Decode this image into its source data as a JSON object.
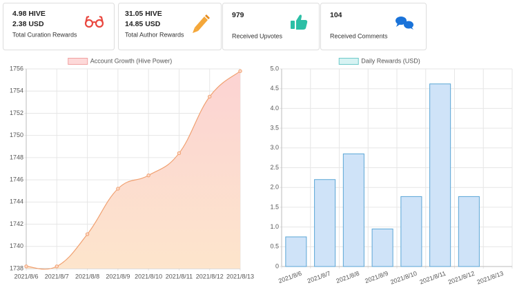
{
  "cards": [
    {
      "lines": [
        "4.98 HIVE",
        "2.38 USD"
      ],
      "label": "Total Curation Rewards"
    },
    {
      "lines": [
        "31.05 HIVE",
        "14.85 USD"
      ],
      "label": "Total Author Rewards"
    },
    {
      "lines": [
        "979"
      ],
      "label": "Received Upvotes"
    },
    {
      "lines": [
        "104"
      ],
      "label": "Received Comments"
    }
  ],
  "chart_data": [
    {
      "type": "line",
      "categories": [
        "2021/8/6",
        "2021/8/7",
        "2021/8/8",
        "2021/8/9",
        "2021/8/10",
        "2021/8/11",
        "2021/8/12",
        "2021/8/13"
      ],
      "series": [
        {
          "name": "Account Growth (Hive Power)",
          "color": "#f0a070",
          "values": [
            1738.2,
            1738.2,
            1741.1,
            1745.2,
            1746.4,
            1748.4,
            1753.5,
            1755.8
          ]
        }
      ],
      "ylim": [
        1738,
        1756
      ],
      "yticks": [
        1738,
        1740,
        1742,
        1744,
        1746,
        1748,
        1750,
        1752,
        1754,
        1756
      ],
      "grid": true
    },
    {
      "type": "bar",
      "categories": [
        "2021/8/6",
        "2021/8/7",
        "2021/8/8",
        "2021/8/9",
        "2021/8/10",
        "2021/8/11",
        "2021/8/12",
        "2021/8/13"
      ],
      "series": [
        {
          "name": "Daily Rewards (USD)",
          "color": "#5aa6d6",
          "values": [
            0.75,
            2.2,
            2.85,
            0.95,
            1.77,
            4.62,
            1.77,
            0
          ]
        }
      ],
      "ylim": [
        0,
        5
      ],
      "yticks": [
        0,
        0.5,
        {
          "value": 1,
          "label": "1.0"
        },
        1.5,
        {
          "value": 2,
          "label": "2.0"
        },
        2.5,
        {
          "value": 3,
          "label": "3.0"
        },
        3.5,
        {
          "value": 4,
          "label": "4.0"
        },
        4.5,
        {
          "value": 5,
          "label": "5.0"
        }
      ],
      "grid": true
    }
  ]
}
